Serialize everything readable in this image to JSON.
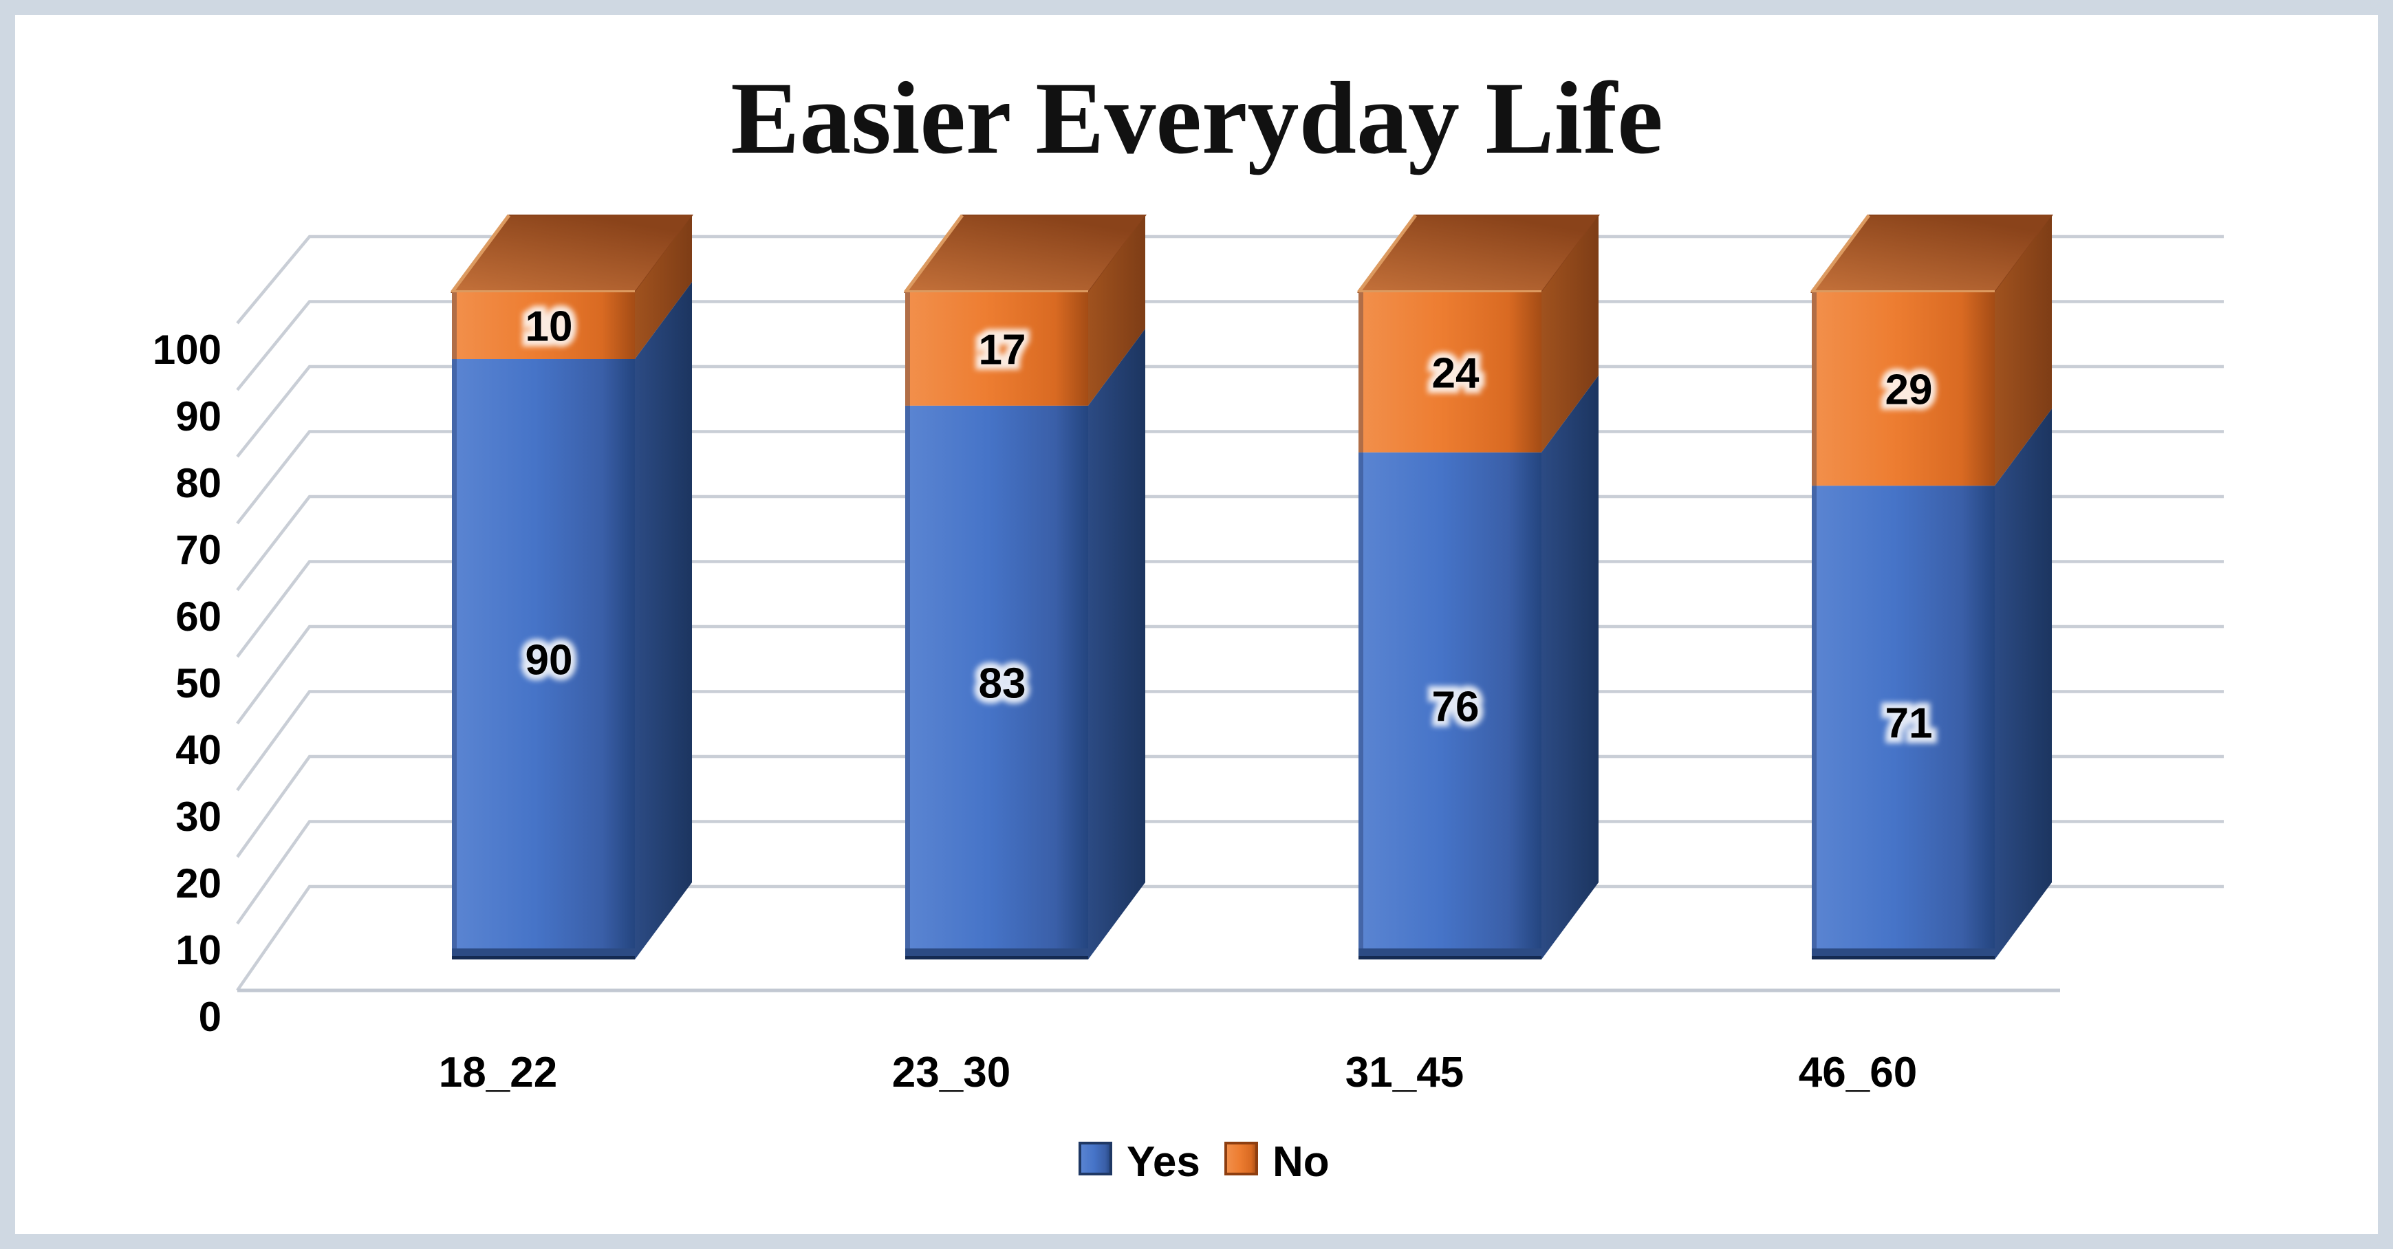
{
  "frame": {
    "background": "#ffffff",
    "border_color": "#cfd8e2"
  },
  "chart_data": {
    "type": "bar",
    "subtype": "stacked-column-3d",
    "title": "Easier Everyday Life",
    "categories": [
      "18_22",
      "23_30",
      "31_45",
      "46_60"
    ],
    "series": [
      {
        "name": "Yes",
        "color": "#4674c8",
        "values": [
          90,
          83,
          76,
          71
        ]
      },
      {
        "name": "No",
        "color": "#ed7d31",
        "values": [
          10,
          17,
          24,
          29
        ]
      }
    ],
    "ylim": [
      0,
      100
    ],
    "ytick_step": 10,
    "yticks": [
      0,
      10,
      20,
      30,
      40,
      50,
      60,
      70,
      80,
      90,
      100
    ],
    "grid": true,
    "legend_position": "bottom",
    "xlabel": "",
    "ylabel": "",
    "data_labels": true
  },
  "palette": {
    "yes": {
      "front_light": "#5b85d2",
      "front": "#4674c8",
      "front_dark": "#3a5fa8",
      "front_edge": "#24457f",
      "side": "#2c4b84",
      "side_dark": "#1c3560",
      "bottom": "#142a52",
      "swatch_border": "#1f3864"
    },
    "no": {
      "front_light": "#f2904c",
      "front": "#ed7d31",
      "front_dark": "#d96a22",
      "front_edge": "#a44c15",
      "side": "#a0521e",
      "side_dark": "#7e3d16",
      "top_front": "#c4713a",
      "top_back": "#8a431a",
      "top_edge": "#dc9a60",
      "swatch_border": "#8e3e10"
    },
    "gridline": "#c9ced6",
    "axis_line": "#c2c8d2",
    "text": "#000000"
  }
}
